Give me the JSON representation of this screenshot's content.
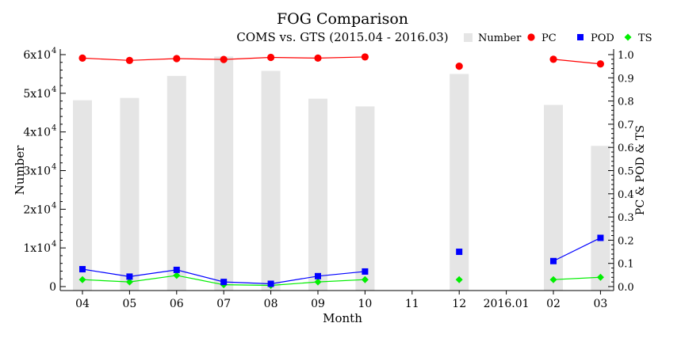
{
  "chart_data": {
    "type": "bar+line",
    "title": "FOG Comparison",
    "subtitle": "COMS vs. GTS (2015.04 - 2016.03)",
    "xlabel": "Month",
    "ylabel_left": "Number",
    "ylabel_right": "PC & POD & TS",
    "categories": [
      "04",
      "05",
      "06",
      "07",
      "08",
      "09",
      "10",
      "11",
      "12",
      "2016.01",
      "02",
      "03"
    ],
    "ylim_left": [
      0,
      60000
    ],
    "ylim_right": [
      0,
      1.0
    ],
    "left_ticks": [
      {
        "value": 0,
        "mantissa": "0",
        "exp": ""
      },
      {
        "value": 10000,
        "mantissa": "1x10",
        "exp": "4"
      },
      {
        "value": 20000,
        "mantissa": "2x10",
        "exp": "4"
      },
      {
        "value": 30000,
        "mantissa": "3x10",
        "exp": "4"
      },
      {
        "value": 40000,
        "mantissa": "4x10",
        "exp": "4"
      },
      {
        "value": 50000,
        "mantissa": "5x10",
        "exp": "4"
      },
      {
        "value": 60000,
        "mantissa": "6x10",
        "exp": "4"
      }
    ],
    "right_ticks": [
      "0.0",
      "0.1",
      "0.2",
      "0.3",
      "0.4",
      "0.5",
      "0.6",
      "0.7",
      "0.8",
      "0.9",
      "1.0"
    ],
    "legend": [
      "Number",
      "PC",
      "POD",
      "TS"
    ],
    "legend_position": "top-right",
    "colors": {
      "Number": "#e5e5e5",
      "PC": "#ff0000",
      "POD": "#0000ff",
      "TS": "#00ee00"
    },
    "series": [
      {
        "name": "Number",
        "kind": "bar",
        "axis": "left",
        "values": [
          48200,
          48800,
          54500,
          59500,
          55800,
          48600,
          46600,
          null,
          55000,
          null,
          47000,
          36400
        ]
      },
      {
        "name": "PC",
        "kind": "line",
        "axis": "right",
        "marker": "circle",
        "values": [
          0.985,
          0.975,
          0.983,
          0.979,
          0.988,
          0.985,
          0.99,
          null,
          0.95,
          null,
          0.98,
          0.96
        ]
      },
      {
        "name": "POD",
        "kind": "line",
        "axis": "right",
        "marker": "square",
        "values": [
          0.075,
          0.043,
          0.072,
          0.02,
          0.012,
          0.045,
          0.065,
          null,
          0.15,
          null,
          0.11,
          0.21
        ]
      },
      {
        "name": "TS",
        "kind": "line",
        "axis": "right",
        "marker": "diamond",
        "values": [
          0.03,
          0.02,
          0.048,
          0.008,
          0.005,
          0.02,
          0.03,
          null,
          0.03,
          null,
          0.03,
          0.04
        ]
      }
    ]
  }
}
